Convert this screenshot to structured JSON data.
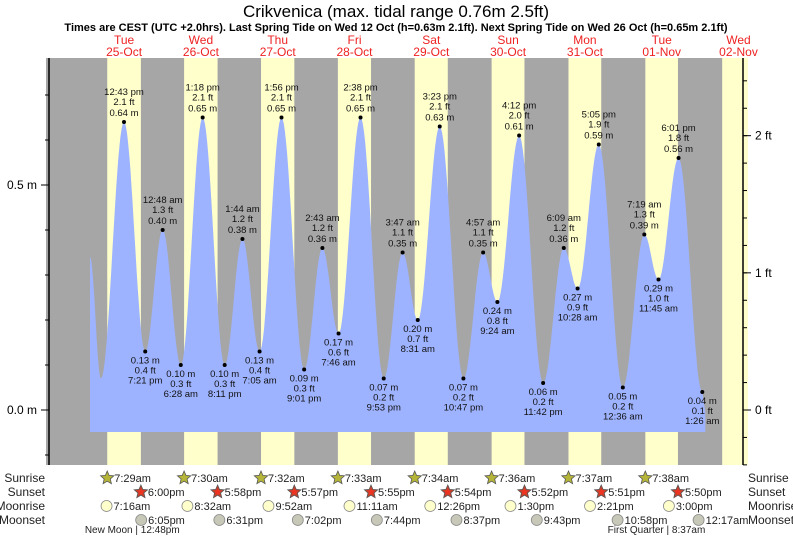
{
  "header": {
    "title": "Crikvenica (max. tidal range 0.76m 2.5ft)",
    "subtitle": "Times are CEST (UTC +2.0hrs). Last Spring Tide on Wed 12 Oct (h=0.63m 2.1ft). Next Spring Tide on Wed 26 Oct (h=0.65m 2.1ft)"
  },
  "colors": {
    "day": "#ffffcc",
    "night": "#a6a6a6",
    "water": "#9eb3ff",
    "day_label": "#ee2222",
    "sunrise": "#b5b53a",
    "sunset": "#e03a2a",
    "moonrise": "#ffffcc",
    "moonset": "#c8c8b8"
  },
  "chart_data": {
    "type": "area",
    "title": "Crikvenica (max. tidal range 0.76m 2.5ft)",
    "ylabel_left": "m",
    "ylabel_right": "ft",
    "ylim_m": [
      -0.12,
      0.78
    ],
    "left_ticks": [
      {
        "v": 0.0,
        "label": "0.0 m"
      },
      {
        "v": 0.5,
        "label": "0.5 m"
      }
    ],
    "right_ticks": [
      {
        "v": 0,
        "label": "0 ft"
      },
      {
        "v": 1,
        "label": "1 ft"
      },
      {
        "v": 2,
        "label": "2 ft"
      }
    ],
    "days": [
      {
        "dow": "Tue",
        "date": "25-Oct"
      },
      {
        "dow": "Wed",
        "date": "26-Oct"
      },
      {
        "dow": "Thu",
        "date": "27-Oct"
      },
      {
        "dow": "Fri",
        "date": "28-Oct"
      },
      {
        "dow": "Sat",
        "date": "29-Oct"
      },
      {
        "dow": "Sun",
        "date": "30-Oct"
      },
      {
        "dow": "Mon",
        "date": "31-Oct"
      },
      {
        "dow": "Tue",
        "date": "01-Nov"
      },
      {
        "dow": "Wed",
        "date": "02-Nov"
      }
    ],
    "curve_lead_in": [
      {
        "d": 0,
        "h": 2.1,
        "m": 0.34
      },
      {
        "d": 0,
        "h": 5.5,
        "m": 0.07
      }
    ],
    "tides": [
      {
        "d": 0,
        "time": "12:43 pm",
        "m": 0.64,
        "ft": "2.1 ft",
        "type": "high"
      },
      {
        "d": 0,
        "time": "7:21 pm",
        "m": 0.13,
        "ft": "0.4 ft",
        "type": "low"
      },
      {
        "d": 1,
        "time": "12:48 am",
        "m": 0.4,
        "ft": "1.3 ft",
        "type": "high"
      },
      {
        "d": 1,
        "time": "6:28 am",
        "m": 0.1,
        "ft": "0.3 ft",
        "type": "low"
      },
      {
        "d": 1,
        "time": "1:18 pm",
        "m": 0.65,
        "ft": "2.1 ft",
        "type": "high"
      },
      {
        "d": 1,
        "time": "8:11 pm",
        "m": 0.1,
        "ft": "0.3 ft",
        "type": "low"
      },
      {
        "d": 2,
        "time": "1:44 am",
        "m": 0.38,
        "ft": "1.2 ft",
        "type": "high"
      },
      {
        "d": 2,
        "time": "7:05 am",
        "m": 0.13,
        "ft": "0.4 ft",
        "type": "low"
      },
      {
        "d": 2,
        "time": "1:56 pm",
        "m": 0.65,
        "ft": "2.1 ft",
        "type": "high"
      },
      {
        "d": 2,
        "time": "9:01 pm",
        "m": 0.09,
        "ft": "0.3 ft",
        "type": "low"
      },
      {
        "d": 3,
        "time": "2:43 am",
        "m": 0.36,
        "ft": "1.2 ft",
        "type": "high"
      },
      {
        "d": 3,
        "time": "7:46 am",
        "m": 0.17,
        "ft": "0.6 ft",
        "type": "low"
      },
      {
        "d": 3,
        "time": "2:38 pm",
        "m": 0.65,
        "ft": "2.1 ft",
        "type": "high"
      },
      {
        "d": 3,
        "time": "9:53 pm",
        "m": 0.07,
        "ft": "0.2 ft",
        "type": "low"
      },
      {
        "d": 4,
        "time": "3:47 am",
        "m": 0.35,
        "ft": "1.1 ft",
        "type": "high"
      },
      {
        "d": 4,
        "time": "8:31 am",
        "m": 0.2,
        "ft": "0.7 ft",
        "type": "low"
      },
      {
        "d": 4,
        "time": "3:23 pm",
        "m": 0.63,
        "ft": "2.1 ft",
        "type": "high"
      },
      {
        "d": 4,
        "time": "10:47 pm",
        "m": 0.07,
        "ft": "0.2 ft",
        "type": "low"
      },
      {
        "d": 5,
        "time": "4:57 am",
        "m": 0.35,
        "ft": "1.1 ft",
        "type": "high"
      },
      {
        "d": 5,
        "time": "9:24 am",
        "m": 0.24,
        "ft": "0.8 ft",
        "type": "low"
      },
      {
        "d": 5,
        "time": "4:12 pm",
        "m": 0.61,
        "ft": "2.0 ft",
        "type": "high"
      },
      {
        "d": 5,
        "time": "11:42 pm",
        "m": 0.06,
        "ft": "0.2 ft",
        "type": "low"
      },
      {
        "d": 6,
        "time": "6:09 am",
        "m": 0.36,
        "ft": "1.2 ft",
        "type": "high"
      },
      {
        "d": 6,
        "time": "10:28 am",
        "m": 0.27,
        "ft": "0.9 ft",
        "type": "low"
      },
      {
        "d": 6,
        "time": "5:05 pm",
        "m": 0.59,
        "ft": "1.9 ft",
        "type": "high"
      },
      {
        "d": 7,
        "time": "12:36 am",
        "m": 0.05,
        "ft": "0.2 ft",
        "type": "low"
      },
      {
        "d": 7,
        "time": "7:19 am",
        "m": 0.39,
        "ft": "1.3 ft",
        "type": "high"
      },
      {
        "d": 7,
        "time": "11:45 am",
        "m": 0.29,
        "ft": "1.0 ft",
        "type": "low"
      },
      {
        "d": 7,
        "time": "6:01 pm",
        "m": 0.56,
        "ft": "1.8 ft",
        "type": "high"
      },
      {
        "d": 8,
        "time": "1:26 am",
        "m": 0.04,
        "ft": "0.1 ft",
        "type": "low"
      }
    ]
  },
  "almanac": {
    "row_labels": {
      "sunrise": "Sunrise",
      "sunset": "Sunset",
      "moonrise": "Moonrise",
      "moonset": "Moonset"
    },
    "sunrise": [
      {
        "d": 0,
        "t": "7:29am"
      },
      {
        "d": 1,
        "t": "7:30am"
      },
      {
        "d": 2,
        "t": "7:32am"
      },
      {
        "d": 3,
        "t": "7:33am"
      },
      {
        "d": 4,
        "t": "7:34am"
      },
      {
        "d": 5,
        "t": "7:36am"
      },
      {
        "d": 6,
        "t": "7:37am"
      },
      {
        "d": 7,
        "t": "7:38am"
      }
    ],
    "sunset": [
      {
        "d": 0,
        "t": "6:00pm"
      },
      {
        "d": 1,
        "t": "5:58pm"
      },
      {
        "d": 2,
        "t": "5:57pm"
      },
      {
        "d": 3,
        "t": "5:55pm"
      },
      {
        "d": 4,
        "t": "5:54pm"
      },
      {
        "d": 5,
        "t": "5:52pm"
      },
      {
        "d": 6,
        "t": "5:51pm"
      },
      {
        "d": 7,
        "t": "5:50pm"
      }
    ],
    "moonrise": [
      {
        "d": 0,
        "t": "7:16am"
      },
      {
        "d": 1,
        "t": "8:32am"
      },
      {
        "d": 2,
        "t": "9:52am"
      },
      {
        "d": 3,
        "t": "11:11am"
      },
      {
        "d": 4,
        "t": "12:26pm"
      },
      {
        "d": 5,
        "t": "1:30pm"
      },
      {
        "d": 6,
        "t": "2:21pm"
      },
      {
        "d": 7,
        "t": "3:00pm"
      }
    ],
    "moonset": [
      {
        "d": 0,
        "t": "6:05pm"
      },
      {
        "d": 1,
        "t": "6:31pm"
      },
      {
        "d": 2,
        "t": "7:02pm"
      },
      {
        "d": 3,
        "t": "7:44pm"
      },
      {
        "d": 4,
        "t": "8:37pm"
      },
      {
        "d": 5,
        "t": "9:43pm"
      },
      {
        "d": 6,
        "t": "10:58pm"
      },
      {
        "d": 8,
        "t": "12:17am"
      }
    ],
    "phases": [
      {
        "d": 0,
        "t": "12:48pm",
        "text": "New Moon | 12:48pm"
      },
      {
        "d": 7,
        "t": "8:37am",
        "text": "First Quarter | 8:37am"
      }
    ]
  },
  "next_day_sunrise": {
    "d": 8,
    "t": "7:39am"
  }
}
